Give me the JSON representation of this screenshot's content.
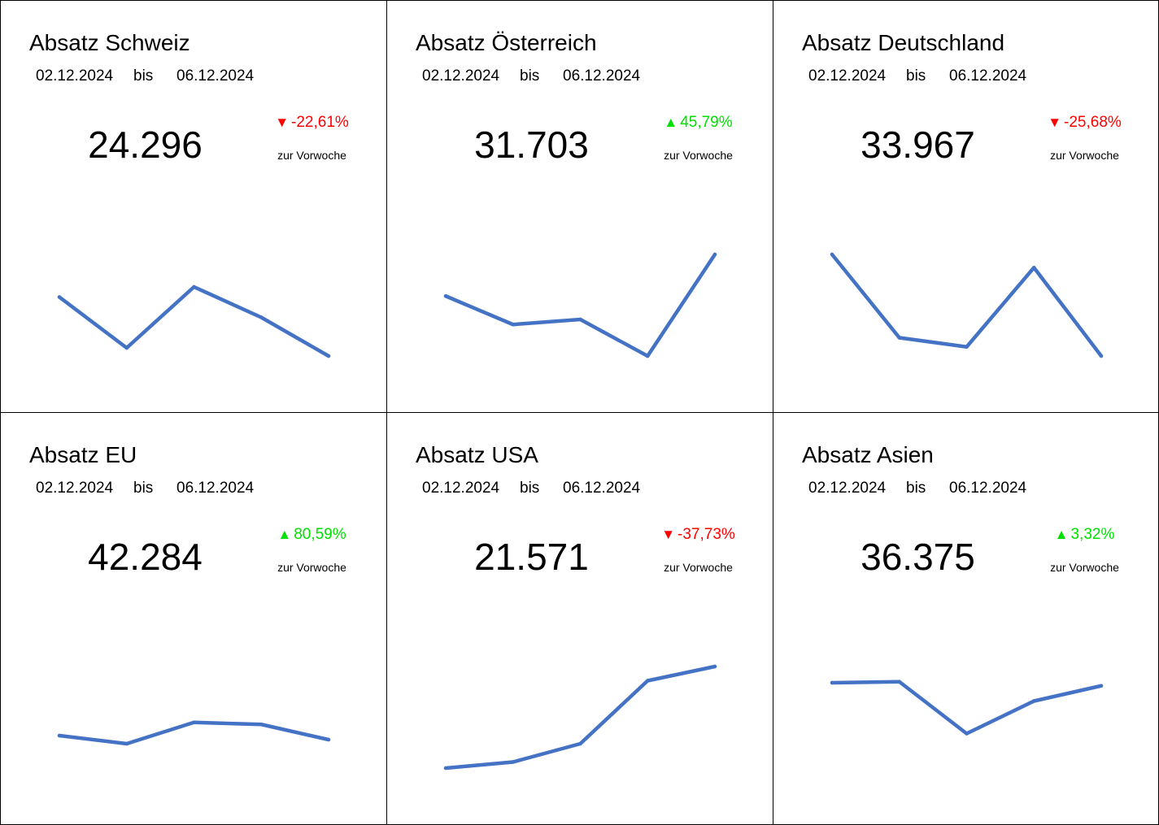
{
  "colors": {
    "line": "#4472C4",
    "up": "#00E000",
    "down": "#FF0000",
    "text": "#000000"
  },
  "labels": {
    "bis": "bis",
    "note": "zur Vorwoche"
  },
  "cards": [
    {
      "title": "Absatz Schweiz",
      "date_from": "02.12.2024",
      "date_to": "06.12.2024",
      "value": "24.296",
      "change": "-22,61%",
      "direction": "down"
    },
    {
      "title": "Absatz Österreich",
      "date_from": "02.12.2024",
      "date_to": "06.12.2024",
      "value": "31.703",
      "change": "45,79%",
      "direction": "up"
    },
    {
      "title": "Absatz Deutschland",
      "date_from": "02.12.2024",
      "date_to": "06.12.2024",
      "value": "33.967",
      "change": "-25,68%",
      "direction": "down"
    },
    {
      "title": "Absatz EU",
      "date_from": "02.12.2024",
      "date_to": "06.12.2024",
      "value": "42.284",
      "change": "80,59%",
      "direction": "up"
    },
    {
      "title": "Absatz USA",
      "date_from": "02.12.2024",
      "date_to": "06.12.2024",
      "value": "21.571",
      "change": "-37,73%",
      "direction": "down"
    },
    {
      "title": "Absatz Asien",
      "date_from": "02.12.2024",
      "date_to": "06.12.2024",
      "value": "36.375",
      "change": "3,32%",
      "direction": "up"
    }
  ],
  "chart_data": [
    {
      "type": "line",
      "series": [
        {
          "values": [
            0.58,
            0.08,
            0.68,
            0.38,
            0.0
          ]
        }
      ]
    },
    {
      "type": "line",
      "series": [
        {
          "values": [
            0.59,
            0.31,
            0.36,
            0.0,
            1.0
          ]
        }
      ]
    },
    {
      "type": "line",
      "series": [
        {
          "values": [
            1.0,
            0.18,
            0.09,
            0.87,
            0.0
          ]
        }
      ]
    },
    {
      "type": "line",
      "series": [
        {
          "values": [
            0.32,
            0.24,
            0.45,
            0.43,
            0.28
          ]
        }
      ]
    },
    {
      "type": "line",
      "series": [
        {
          "values": [
            0.0,
            0.06,
            0.24,
            0.86,
            1.0
          ]
        }
      ]
    },
    {
      "type": "line",
      "series": [
        {
          "values": [
            0.84,
            0.85,
            0.34,
            0.66,
            0.81
          ]
        }
      ]
    }
  ]
}
